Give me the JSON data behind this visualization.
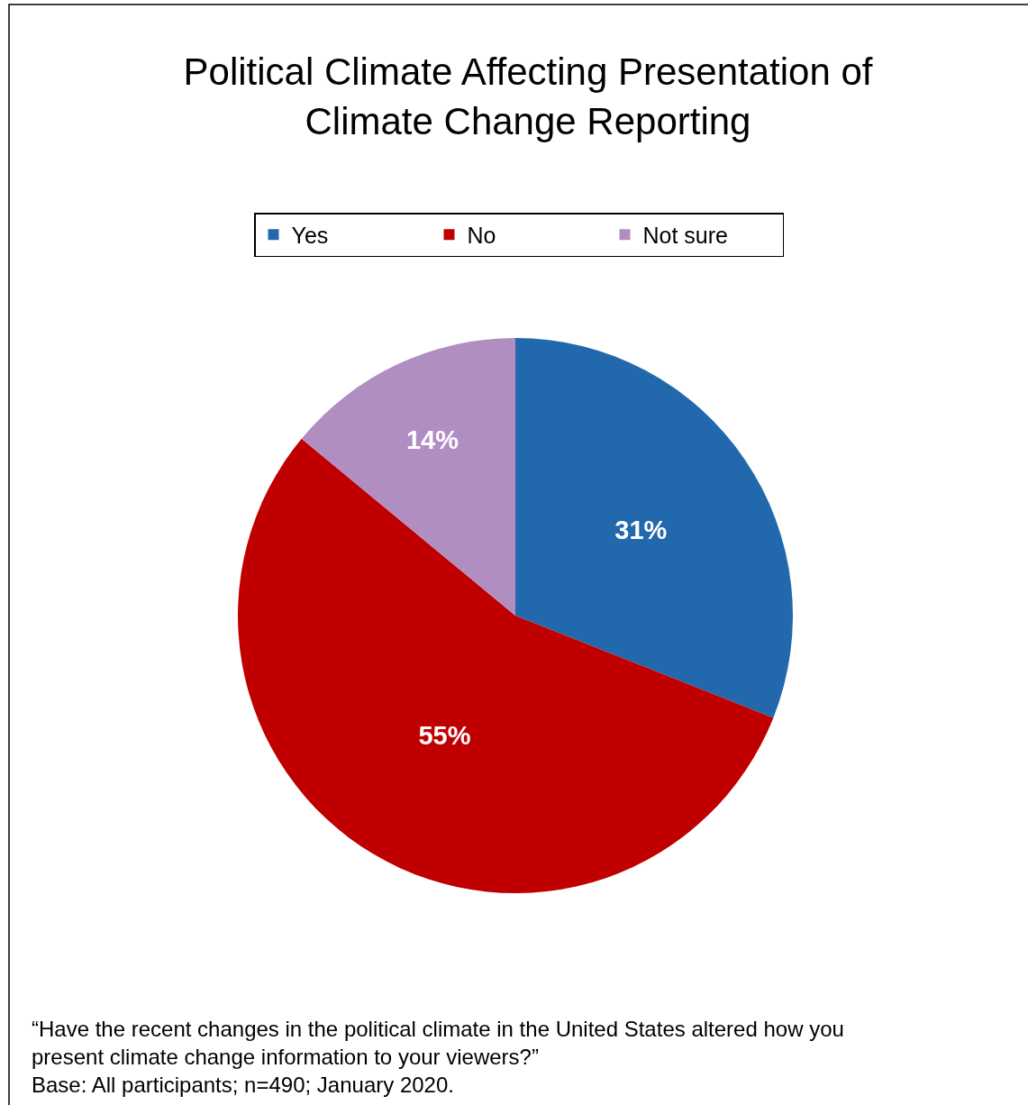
{
  "chart_data": {
    "type": "pie",
    "title": "Political Climate Affecting Presentation of Climate Change Reporting",
    "categories": [
      "Yes",
      "No",
      "Not sure"
    ],
    "values": [
      31,
      55,
      14
    ],
    "colors": [
      "#2268ac",
      "#c00000",
      "#b18ec2"
    ],
    "value_labels": [
      "31%",
      "55%",
      "14%"
    ],
    "legend": "top",
    "annotations": [
      "“Have the recent changes in the political climate in the United States altered how you present climate change information to your viewers?”",
      "Base: All participants; n=490; January 2020."
    ]
  }
}
